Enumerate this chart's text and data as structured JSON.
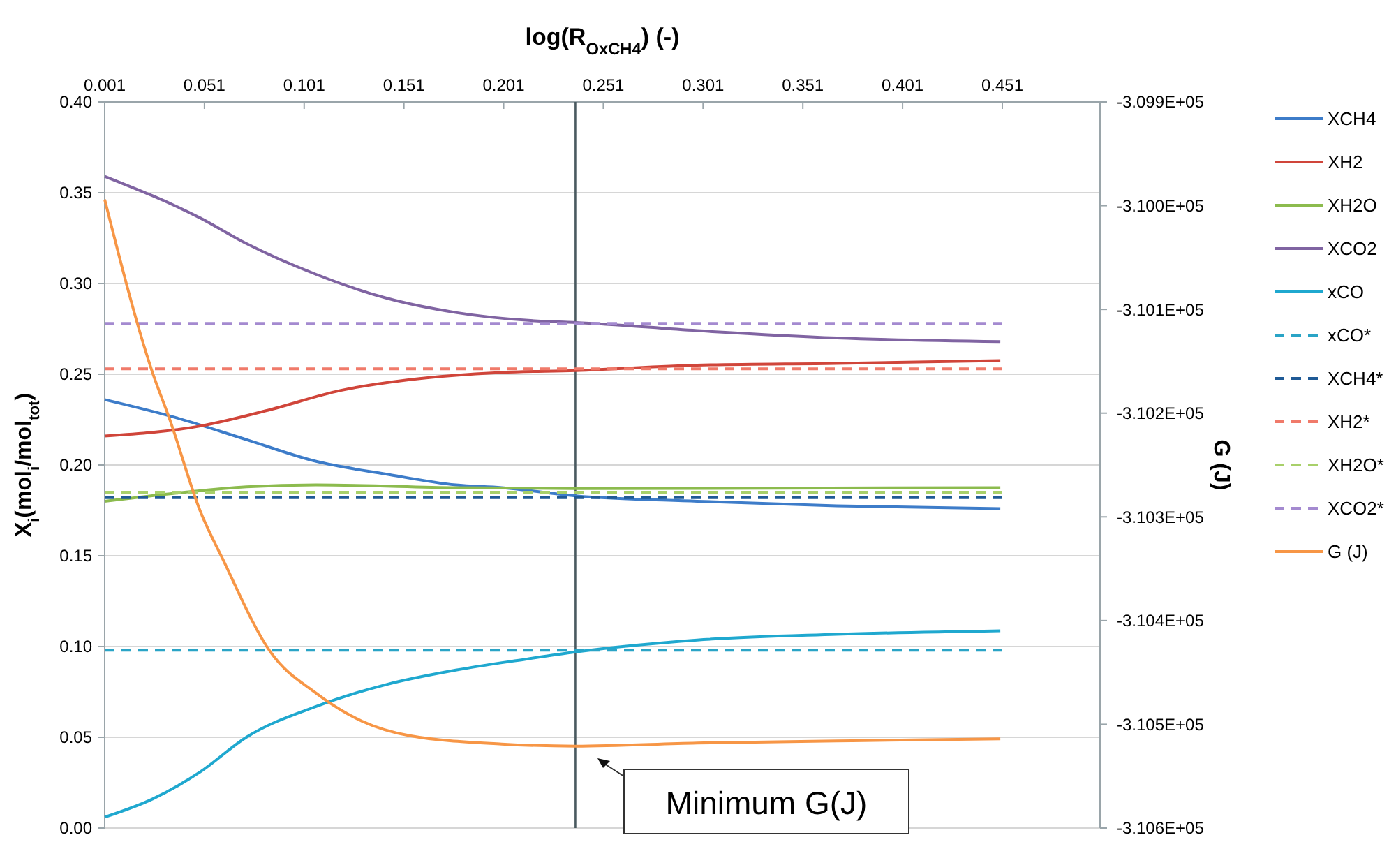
{
  "chart_data": {
    "type": "line",
    "xlabel": "log(R$_{OxCH4}$) (-)",
    "ylabel": "X$_{i}$(mol$_{i}$/mol$_{tot}$)",
    "y2label": "G (J)",
    "xlim": [
      0.001,
      0.5
    ],
    "xticks": [
      0.001,
      0.051,
      0.101,
      0.151,
      0.201,
      0.251,
      0.301,
      0.351,
      0.401,
      0.451
    ],
    "ylim": [
      0,
      0.4
    ],
    "yticks": [
      {
        "value": 0,
        "label": "0.00"
      },
      {
        "value": 0.05,
        "label": "0.05"
      },
      {
        "value": 0.1,
        "label": "0.10"
      },
      {
        "value": 0.15,
        "label": "0.15"
      },
      {
        "value": 0.2,
        "label": "0.20"
      },
      {
        "value": 0.25,
        "label": "0.25"
      },
      {
        "value": 0.3,
        "label": "0.30"
      },
      {
        "value": 0.35,
        "label": "0.35"
      },
      {
        "value": 0.4,
        "label": "0.40"
      }
    ],
    "y2lim": [
      -310600,
      -309900
    ],
    "y2ticks": [
      {
        "value": -309900,
        "label": "-3.099E+05"
      },
      {
        "value": -310000,
        "label": "-3.100E+05"
      },
      {
        "value": -310100,
        "label": "-3.101E+05"
      },
      {
        "value": -310200,
        "label": "-3.102E+05"
      },
      {
        "value": -310300,
        "label": "-3.103E+05"
      },
      {
        "value": -310400,
        "label": "-3.104E+05"
      },
      {
        "value": -310500,
        "label": "-3.105E+05"
      },
      {
        "value": -310600,
        "label": "-3.106E+05"
      }
    ],
    "grid": "y",
    "legend": "right",
    "ref_lines": [
      {
        "axis": "x",
        "value": 0.237,
        "color": "#4a5a60"
      }
    ],
    "annotations": [
      "Minimum G(J)"
    ],
    "series": [
      {
        "name": "XCH4",
        "color": "#3d7cc9",
        "x": [
          0.001,
          0.037,
          0.072,
          0.107,
          0.142,
          0.177,
          0.2,
          0.237,
          0.298,
          0.368,
          0.45
        ],
        "values": [
          0.236,
          0.226,
          0.214,
          0.202,
          0.195,
          0.189,
          0.1875,
          0.183,
          0.18,
          0.1775,
          0.176
        ]
      },
      {
        "name": "XH2",
        "color": "#d0453a",
        "x": [
          0.001,
          0.049,
          0.084,
          0.119,
          0.154,
          0.2,
          0.237,
          0.298,
          0.368,
          0.45
        ],
        "values": [
          0.216,
          0.2215,
          0.2305,
          0.241,
          0.247,
          0.251,
          0.252,
          0.255,
          0.256,
          0.2575
        ]
      },
      {
        "name": "XH2O",
        "color": "#8cbb4e",
        "x": [
          0.001,
          0.037,
          0.072,
          0.107,
          0.177,
          0.237,
          0.45
        ],
        "values": [
          0.18,
          0.1845,
          0.188,
          0.189,
          0.1875,
          0.187,
          0.1875
        ]
      },
      {
        "name": "XCO2",
        "color": "#8064a2",
        "x": [
          0.001,
          0.049,
          0.072,
          0.107,
          0.142,
          0.177,
          0.224,
          0.237,
          0.298,
          0.368,
          0.45
        ],
        "values": [
          0.359,
          0.336,
          0.322,
          0.305,
          0.292,
          0.284,
          0.279,
          0.2785,
          0.274,
          0.27,
          0.268
        ]
      },
      {
        "name": "xCO",
        "color": "#1fa8cf",
        "x": [
          0.001,
          0.025,
          0.049,
          0.072,
          0.107,
          0.142,
          0.177,
          0.212,
          0.237,
          0.298,
          0.368,
          0.45
        ],
        "values": [
          0.006,
          0.016,
          0.031,
          0.05,
          0.067,
          0.079,
          0.087,
          0.093,
          0.097,
          0.1036,
          0.1067,
          0.1087
        ]
      },
      {
        "name": "xCO*",
        "color": "#2aa4c6",
        "line_style": "dashed",
        "x": [
          0.001,
          0.451
        ],
        "values": [
          0.098,
          0.098
        ]
      },
      {
        "name": "XCH4*",
        "color": "#1f5a96",
        "line_style": "dashed",
        "x": [
          0.001,
          0.451
        ],
        "values": [
          0.182,
          0.182
        ]
      },
      {
        "name": "XH2*",
        "color": "#f07a6a",
        "line_style": "dashed",
        "x": [
          0.001,
          0.451
        ],
        "values": [
          0.253,
          0.253
        ]
      },
      {
        "name": "XH2O*",
        "color": "#a8d06a",
        "line_style": "dashed",
        "x": [
          0.001,
          0.451
        ],
        "values": [
          0.185,
          0.185
        ]
      },
      {
        "name": "XCO2*",
        "color": "#a48ad0",
        "line_style": "dashed",
        "x": [
          0.001,
          0.451
        ],
        "values": [
          0.278,
          0.278
        ]
      },
      {
        "name": "G (J)",
        "color": "#f79646",
        "axis": "y2",
        "x": [
          0.001,
          0.025,
          0.0336,
          0.049,
          0.06,
          0.084,
          0.107,
          0.13,
          0.154,
          0.2,
          0.237,
          0.298,
          0.368,
          0.45
        ],
        "values": [
          -309994,
          -310161,
          -310206,
          -310295,
          -310340,
          -310430,
          -310470,
          -310497,
          -310511,
          -310519,
          -310521,
          -310518,
          -310516,
          -310514
        ]
      }
    ]
  }
}
